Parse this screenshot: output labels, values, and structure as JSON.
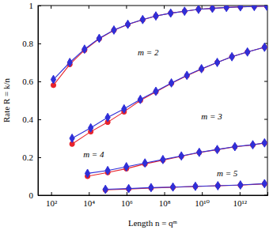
{
  "chart_data": {
    "type": "line",
    "x_label": "Length n = qᵐ",
    "y_label": "Rate R = k/n",
    "log": "x",
    "grid": false,
    "xlim": [
      20,
      30000000000000
    ],
    "ylim": [
      0,
      1
    ],
    "xticks": [
      {
        "value": 100,
        "label": "10²"
      },
      {
        "value": 10000,
        "label": "10⁴"
      },
      {
        "value": 1000000,
        "label": "10⁶"
      },
      {
        "value": 100000000,
        "label": "10⁸"
      },
      {
        "value": 10000000000,
        "label": "10¹⁰"
      },
      {
        "value": 1000000000000,
        "label": "10¹²"
      }
    ],
    "yticks": [
      0,
      0.2,
      0.4,
      0.6,
      0.8,
      1
    ],
    "series": [
      {
        "color": "#e8232b",
        "marker": "circle",
        "x": [
          132,
          977,
          5900,
          35500,
          214000,
          1170000,
          7200000,
          36000000,
          220000000,
          1200000000,
          6600000000,
          36000000000,
          200000000000,
          1100000000000,
          6000000000000,
          27500000000000
        ],
        "values": [
          0.58,
          0.69,
          0.765,
          0.825,
          0.87,
          0.9,
          0.925,
          0.945,
          0.96,
          0.97,
          0.98,
          0.985,
          0.99,
          0.993,
          0.995,
          0.997
        ]
      },
      {
        "color": "#2f2fd8",
        "marker": "diamond",
        "x": [
          132,
          977,
          5900,
          35500,
          214000,
          1170000,
          7200000,
          36000000,
          220000000,
          1200000000,
          6600000000,
          36000000000,
          200000000000,
          1100000000000,
          6000000000000,
          27500000000000
        ],
        "values": [
          0.61,
          0.7,
          0.77,
          0.827,
          0.871,
          0.901,
          0.926,
          0.945,
          0.96,
          0.97,
          0.98,
          0.985,
          0.99,
          0.993,
          0.995,
          0.997
        ]
      },
      {
        "color": "#e8232b",
        "marker": "circle",
        "x": [
          1290,
          12600,
          100000,
          740000,
          5400000,
          36000000,
          240000000,
          1600000000,
          9500000000,
          65000000000,
          390000000000,
          2600000000000,
          21000000000000
        ],
        "values": [
          0.27,
          0.335,
          0.385,
          0.44,
          0.5,
          0.545,
          0.59,
          0.63,
          0.665,
          0.7,
          0.73,
          0.755,
          0.78
        ]
      },
      {
        "color": "#2f2fd8",
        "marker": "diamond",
        "x": [
          1290,
          12600,
          100000,
          740000,
          5400000,
          36000000,
          240000000,
          1600000000,
          9500000000,
          65000000000,
          390000000000,
          2600000000000,
          21000000000000
        ],
        "values": [
          0.3,
          0.355,
          0.41,
          0.455,
          0.505,
          0.548,
          0.592,
          0.632,
          0.667,
          0.7,
          0.73,
          0.755,
          0.78
        ]
      },
      {
        "color": "#e8232b",
        "marker": "circle",
        "x": [
          8500,
          100000,
          980000,
          9500000,
          85000000,
          810000000,
          7200000000,
          65000000000,
          560000000000,
          5000000000000,
          21000000000000
        ],
        "values": [
          0.1,
          0.12,
          0.14,
          0.165,
          0.185,
          0.205,
          0.225,
          0.24,
          0.255,
          0.265,
          0.275
        ]
      },
      {
        "color": "#2f2fd8",
        "marker": "diamond",
        "x": [
          8500,
          100000,
          980000,
          9500000,
          85000000,
          810000000,
          7200000000,
          65000000000,
          560000000000,
          5000000000000,
          21000000000000
        ],
        "values": [
          0.115,
          0.13,
          0.15,
          0.17,
          0.188,
          0.207,
          0.226,
          0.241,
          0.256,
          0.266,
          0.276
        ]
      },
      {
        "color": "#e8232b",
        "marker": "circle",
        "x": [
          76000,
          1300000,
          20000000,
          290000000,
          4500000000,
          70000000000,
          1100000000000,
          21000000000000
        ],
        "values": [
          0.028,
          0.033,
          0.038,
          0.042,
          0.046,
          0.05,
          0.053,
          0.06
        ]
      },
      {
        "color": "#2f2fd8",
        "marker": "diamond",
        "x": [
          76000,
          1300000,
          20000000,
          290000000,
          4500000000,
          70000000000,
          1100000000000,
          21000000000000
        ],
        "values": [
          0.031,
          0.035,
          0.04,
          0.043,
          0.047,
          0.05,
          0.054,
          0.061
        ]
      }
    ],
    "annotations": [
      {
        "text": "m = 2",
        "x": 14000000,
        "y": 0.75
      },
      {
        "text": "m = 3",
        "x": 33000000000,
        "y": 0.41
      },
      {
        "text": "m = 4",
        "x": 18000,
        "y": 0.21
      },
      {
        "text": "m = 5",
        "x": 220000000000,
        "y": 0.11
      }
    ]
  }
}
